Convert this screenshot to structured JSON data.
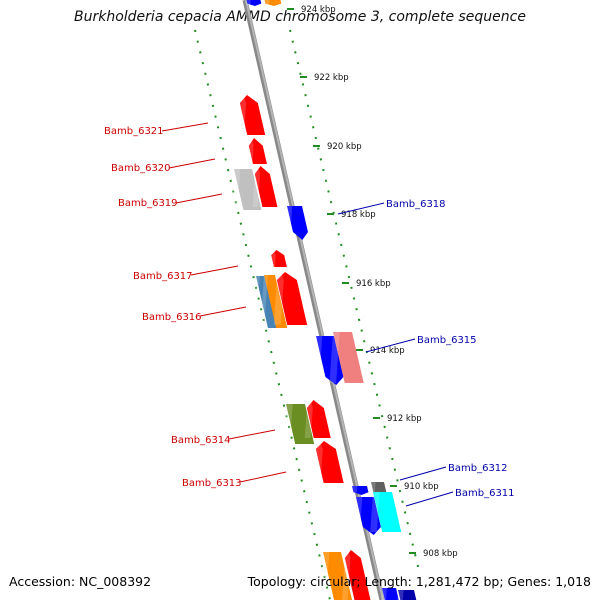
{
  "title": "Burkholderia cepacia AMMD chromosome 3, complete sequence",
  "accession": "Accession: NC_008392",
  "topology": "Topology: circular; Length: 1,281,472 bp; Genes: 1,018",
  "kbp_labels": [
    "924 kbp",
    "922 kbp",
    "920 kbp",
    "918 kbp",
    "916 kbp",
    "914 kbp",
    "912 kbp",
    "910 kbp",
    "908 kbp"
  ],
  "left_genes": [
    "Bamb_6321",
    "Bamb_6320",
    "Bamb_6319",
    "Bamb_6317",
    "Bamb_6316",
    "Bamb_6314",
    "Bamb_6313"
  ],
  "right_genes": [
    "Bamb_6318",
    "Bamb_6315",
    "Bamb_6312",
    "Bamb_6311"
  ],
  "colors": {
    "red": "#ff0000",
    "blue": "#0000ff",
    "orange": "#ff8c00",
    "steelblue": "#4682b4",
    "olive": "#6b8e23",
    "gray": "#c0c0c0",
    "darkgray": "#606060",
    "pink": "#f08080",
    "cyan": "#00ffff",
    "backbone": "#888888",
    "ruler": "#228b22",
    "left_label": "#cc0000",
    "right_label": "#0000aa"
  }
}
